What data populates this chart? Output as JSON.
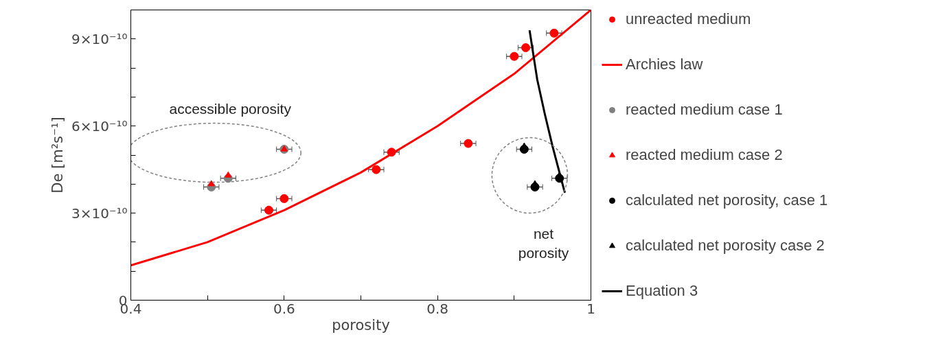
{
  "chart_data": {
    "type": "scatter",
    "xlabel": "porosity",
    "ylabel": "De [m²s⁻¹]",
    "xlim": [
      0.4,
      1
    ],
    "ylim": [
      0,
      1e-09
    ],
    "xticks": [
      0.4,
      {
        "value": 0.5,
        "label": null
      },
      0.6,
      {
        "value": 0.7,
        "label": null
      },
      0.8,
      {
        "value": 0.9,
        "label": null
      },
      1
    ],
    "yticks": [
      0,
      {
        "value": 1e-10,
        "label": null
      },
      {
        "value": 2e-10,
        "label": null
      },
      {
        "value": 3e-10,
        "label": "3×10⁻¹⁰"
      },
      {
        "value": 4e-10,
        "label": null
      },
      {
        "value": 5e-10,
        "label": null
      },
      {
        "value": 6e-10,
        "label": "6×10⁻¹⁰"
      },
      {
        "value": 7e-10,
        "label": null
      },
      {
        "value": 8e-10,
        "label": null
      },
      {
        "value": 9e-10,
        "label": "9×10⁻¹⁰"
      }
    ],
    "legend": "right",
    "series": [
      {
        "name": "unreacted medium",
        "marker": "circle",
        "color": "#ff0000",
        "x": [
          0.58,
          0.6,
          0.72,
          0.74,
          0.84,
          0.9,
          0.915,
          0.952
        ],
        "values": [
          3.1e-10,
          3.5e-10,
          4.5e-10,
          5.1e-10,
          5.4e-10,
          8.4e-10,
          8.7e-10,
          9.2e-10
        ],
        "xerrors": [
          0.01,
          0.01,
          0.01,
          0.01,
          0.01,
          0.01,
          0.01,
          0.01
        ]
      },
      {
        "name": "Archies law",
        "type": "line",
        "color": "#ff0000",
        "x": [
          0.4,
          0.5,
          0.6,
          0.7,
          0.8,
          0.9,
          1.0
        ],
        "values": [
          1.2e-10,
          2e-10,
          3.1e-10,
          4.4e-10,
          6e-10,
          7.8e-10,
          1e-09
        ]
      },
      {
        "name": "reacted medium case 1",
        "marker": "circle",
        "color": "#808080",
        "x": [
          0.505,
          0.527,
          0.6
        ],
        "values": [
          3.9e-10,
          4.2e-10,
          5.2e-10
        ],
        "xerrors": [
          0.01,
          0.01,
          0.01
        ]
      },
      {
        "name": "reacted medium case 2",
        "marker": "triangle",
        "color": "#ff0000",
        "x": [
          0.505,
          0.527,
          0.6
        ],
        "values": [
          4e-10,
          4.3e-10,
          5.2e-10
        ]
      },
      {
        "name": "calculated net porosity, case 1",
        "marker": "circle",
        "color": "#000000",
        "x": [
          0.913,
          0.927,
          0.959
        ],
        "values": [
          5.2e-10,
          3.9e-10,
          4.2e-10
        ],
        "xerrors": [
          0.01,
          0.01,
          0.01
        ]
      },
      {
        "name": "calculated net porosity case 2",
        "marker": "triangle",
        "color": "#000000",
        "x": [
          0.913,
          0.927,
          0.959
        ],
        "values": [
          5.3e-10,
          4e-10,
          4.3e-10
        ]
      },
      {
        "name": "Equation 3",
        "type": "line",
        "color": "#000000",
        "x": [
          0.92,
          0.93,
          0.94,
          0.95,
          0.96,
          0.966
        ],
        "values": [
          9.3e-10,
          7.6e-10,
          6.4e-10,
          5.3e-10,
          4.3e-10,
          3.7e-10
        ]
      }
    ],
    "annotations": [
      "accessible porosity",
      "net\nporosity"
    ]
  }
}
